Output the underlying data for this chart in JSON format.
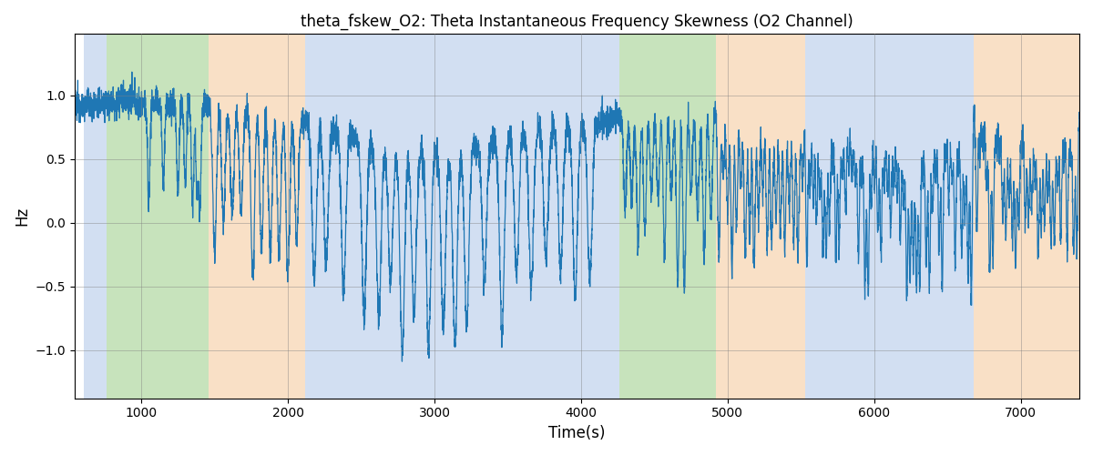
{
  "title": "theta_fskew_O2: Theta Instantaneous Frequency Skewness (O2 Channel)",
  "xlabel": "Time(s)",
  "ylabel": "Hz",
  "xlim": [
    545,
    7400
  ],
  "ylim": [
    -1.38,
    1.48
  ],
  "yticks": [
    -1.0,
    -0.5,
    0.0,
    0.5,
    1.0
  ],
  "xticks": [
    1000,
    2000,
    3000,
    4000,
    5000,
    6000,
    7000
  ],
  "line_color": "#1f77b4",
  "line_width": 0.9,
  "bg_regions": [
    {
      "xmin": 610,
      "xmax": 760,
      "color": "#aec6e8",
      "alpha": 0.55
    },
    {
      "xmin": 760,
      "xmax": 1460,
      "color": "#90c97a",
      "alpha": 0.5
    },
    {
      "xmin": 1460,
      "xmax": 2120,
      "color": "#f5c898",
      "alpha": 0.55
    },
    {
      "xmin": 2120,
      "xmax": 2570,
      "color": "#aec6e8",
      "alpha": 0.55
    },
    {
      "xmin": 2570,
      "xmax": 2720,
      "color": "#aec6e8",
      "alpha": 0.55
    },
    {
      "xmin": 2720,
      "xmax": 4160,
      "color": "#aec6e8",
      "alpha": 0.55
    },
    {
      "xmin": 4160,
      "xmax": 4260,
      "color": "#aec6e8",
      "alpha": 0.55
    },
    {
      "xmin": 4260,
      "xmax": 4310,
      "color": "#90c97a",
      "alpha": 0.5
    },
    {
      "xmin": 4310,
      "xmax": 4920,
      "color": "#90c97a",
      "alpha": 0.5
    },
    {
      "xmin": 4920,
      "xmax": 5530,
      "color": "#f5c898",
      "alpha": 0.55
    },
    {
      "xmin": 5530,
      "xmax": 5800,
      "color": "#aec6e8",
      "alpha": 0.55
    },
    {
      "xmin": 5800,
      "xmax": 6680,
      "color": "#aec6e8",
      "alpha": 0.55
    },
    {
      "xmin": 6680,
      "xmax": 6880,
      "color": "#f5c898",
      "alpha": 0.55
    },
    {
      "xmin": 6880,
      "xmax": 7400,
      "color": "#f5c898",
      "alpha": 0.55
    }
  ],
  "seed": 12345,
  "x_start": 545,
  "x_end": 7400,
  "n_points": 6855
}
